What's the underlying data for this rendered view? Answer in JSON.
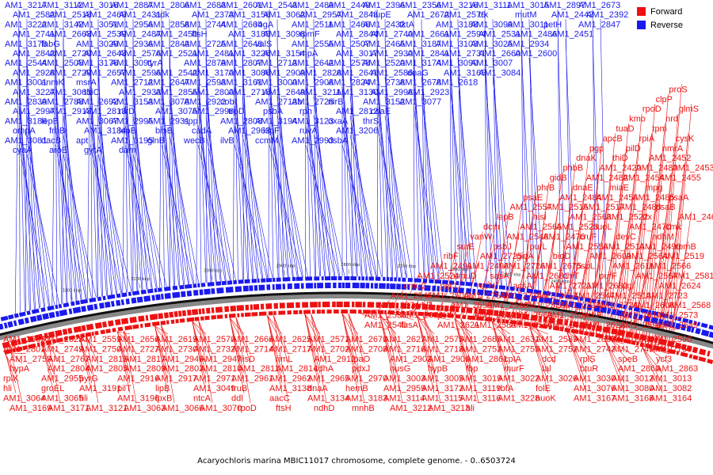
{
  "title": "Acaryochloris marina MBIC11017 chromosome, complete genome. - 0..6503724",
  "legend": {
    "forward": {
      "label": "Forward",
      "color": "#ee1111"
    },
    "reverse": {
      "label": "Reverse",
      "color": "#1a1aee"
    }
  },
  "ticks": [
    "2400 kbp",
    "2500 kbp",
    "2600 kbp",
    "2700 kbp",
    "2800 kbp",
    "2900 kbp",
    "3000 kbp",
    "3100 kbp",
    "3200 kbp"
  ],
  "reverse_labels": [
    "AM1_3217",
    "AM1_3112",
    "AM1_3016",
    "AM1_2887",
    "AM1_2806",
    "AM1_2683",
    "AM1_2601",
    "AM1_2543",
    "AM1_2489",
    "AM1_2449",
    "AM1_2396",
    "AM1_2356",
    "AM1_3216",
    "AM1_3111",
    "AM1_3015",
    "AM1_2897",
    "AM1_2673",
    "AM1_2582",
    "AM1_2518",
    "AM1_2469",
    "AM1_2431",
    "adk",
    "AM1_2373",
    "AM1_3156",
    "AM1_3062",
    "AM1_2957",
    "AM1_2848",
    "hupE",
    "AM1_2672",
    "AM1_2579",
    "trx",
    "mutM",
    "AM1_2442",
    "AM1_2392",
    "AM1_3222",
    "AM1_3142",
    "AM1_3051",
    "AM1_2956",
    "AM1_2858",
    "AM1_2744",
    "AM1_2664",
    "rbgA",
    "AM1_2511",
    "AM1_2466",
    "AM1_2432",
    "tktA",
    "AM1_3188",
    "AM1_3099",
    "AM1_3011",
    "petH",
    "AM1_2847",
    "AM1_2741",
    "AM1_2663",
    "AM1_2539",
    "AM1_2487",
    "AM1_2450",
    "ftsH",
    "AM1_3185",
    "AM1_3098",
    "rpmF",
    "AM1_2844",
    "AM1_2740",
    "AM1_2661",
    "AM1_2594",
    "AM1_2531",
    "AM1_2486",
    "AM1_2451",
    "AM1_3178",
    "fabG",
    "AM1_3029",
    "AM1_2936",
    "AM1_2843",
    "AM1_2725",
    "AM1_2648",
    "valS",
    "AM1_2555",
    "AM1_2507",
    "AM1_2465",
    "AM1_3187",
    "AM1_3103",
    "AM1_3025",
    "AM1_2934",
    "AM1_2842",
    "AM1_2720",
    "AM1_2643",
    "AM1_2576",
    "AM1_2521",
    "AM1_2481",
    "AM1_3226",
    "AM1_3154",
    "rnpA",
    "AM1_3017",
    "AM1_2930",
    "AM1_2841",
    "AM1_2731",
    "AM1_2660",
    "AM1_2600",
    "AM1_2544",
    "AM1_2505",
    "AM1_3176",
    "AM1_3091",
    "tyrA",
    "AM1_2879",
    "AM1_2807",
    "AM1_2713",
    "AM1_2642",
    "AM1_2578",
    "AM1_2520",
    "AM1_3174",
    "AM1_3090",
    "AM1_3007",
    "AM1_2928",
    "AM1_2729",
    "AM1_2657",
    "AM1_2596",
    "AM1_2542",
    "AM1_3170",
    "AM1_3086",
    "AM1_2909",
    "AM1_2828",
    "AM1_2641",
    "AM1_2586",
    "dnaG",
    "AM1_3165",
    "AM1_3084",
    "AM1_3001",
    "anmK",
    "msrA",
    "AM1_2712",
    "AM1_2647",
    "AM1_2593",
    "AM1_3161",
    "AM1_3000",
    "AM1_2908",
    "AM1_2824",
    "AM1_2738",
    "AM1_2678",
    "AM1_2618",
    "AM1_3227",
    "AM1_3061",
    "thiC",
    "AM1_2933",
    "AM1_2855",
    "AM1_2800",
    "AM1_2715",
    "AM1_2649",
    "AM1_3211",
    "AM1_3130",
    "AM1_2998",
    "AM1_2923",
    "AM1_2839",
    "AM1_2788",
    "AM1_2692",
    "AM1_3153",
    "AM1_3078",
    "AM1_2922",
    "cobI",
    "AM1_2713b",
    "AM1_2728",
    "nirB",
    "AM1_3152",
    "AM1_3077",
    "AM1_2997",
    "AM1_2913",
    "AM1_2813",
    "nirD",
    "AM1_3075",
    "AM1_2996",
    "trpD",
    "psbA",
    "rph",
    "AM1_2812",
    "coaE",
    "AM1_3186",
    "lepB",
    "AM1_3067",
    "AM1_2995",
    "AM1_2931",
    "spp",
    "AM1_2808",
    "AM1_3194",
    "AM1_3123",
    "oxaA",
    "thrS",
    "ompA",
    "frhB",
    "AM1_3184",
    "lepB",
    "bioB",
    "cadA",
    "AM1_2963",
    "ispF",
    "ruvA",
    "AM1_3206",
    "AM1_3081",
    "dacB",
    "apt",
    "AM1_3195",
    "glnB",
    "wecB",
    "ilvB",
    "ccmM",
    "AM1_2993",
    "dsbA",
    "cyaA",
    "aroE",
    "gyrA",
    "dam"
  ],
  "forward_labels": [
    "proS",
    "clpP",
    "rpoD",
    "glmS",
    "kmo",
    "nrd",
    "tuaD",
    "tpm",
    "apcB",
    "rpiA",
    "cysK",
    "pgp",
    "pilD",
    "nmrA",
    "dnaK",
    "thiD",
    "AM1_2452",
    "phbB",
    "AM1_2420",
    "AM1_2480",
    "AM1_2453",
    "gidB",
    "AM1_2482",
    "AM1_2454",
    "AM1_2455",
    "phrB",
    "dnaE",
    "miaE",
    "mpg",
    "psaE",
    "AM1_2484",
    "AM1_2456",
    "AM1_2485",
    "psaA",
    "AM1_2557",
    "AM1_2515",
    "AM1_2517",
    "AM1_2488",
    "psaB",
    "lepB",
    "hisI",
    "AM1_2563",
    "AM1_2522",
    "rtx",
    "AM1_2467",
    "dcm",
    "AM1_2565",
    "AM1_2523",
    "nuoL",
    "AM1_2470",
    "cmk",
    "vanW",
    "AM1_2548",
    "AM1_2476",
    "cruF",
    "devC",
    "ndhM",
    "surE",
    "psbJ",
    "purL",
    "AM1_2556",
    "AM1_2516",
    "AM1_2490",
    "rpmB",
    "ribF",
    "AM1_2725",
    "gidA",
    "bioD",
    "AM1_2609",
    "AM1_2564",
    "AM1_2519",
    "AM1_2491",
    "AM1_2498",
    "AM1_2726",
    "AM1_2675",
    "psbL",
    "AM1_2611",
    "AM1_2566",
    "AM1_2524",
    "umuD",
    "sasA",
    "AM1_2681",
    "chiT",
    "purF",
    "AM1_2567",
    "AM1_2581",
    "umuC",
    "petJ",
    "recN",
    "acsA",
    "AM1_2721",
    "AM1_2682",
    "pgl",
    "AM1_2624",
    "AM1_2545",
    "AM1_2506",
    "AM1_2754",
    "AM1_2736",
    "AM1_2617",
    "AM1_2547",
    "AM1_2513",
    "AM1_2723",
    "AM1_2674",
    "rubR",
    "AM1_2599",
    "AM1_2560",
    "AM1_2525",
    "AM1_2514",
    "AM1_2724",
    "AM1_2608",
    "AM1_2568",
    "AM1_2530",
    "AM1_2684",
    "petM",
    "AM1_2610",
    "AM1_2569",
    "AM1_2534",
    "ychF",
    "AM1_2616",
    "AM1_2573",
    "AM1_2540",
    "fusA",
    "AM1_2621",
    "AM1_2585",
    "AM1_2546",
    "AM1_2662",
    "AM1_2623",
    "AM1_2591",
    "AM1_2549",
    "AM1_2665",
    "AM1_2628",
    "AM1_2559",
    "AM1_2656",
    "AM1_2619",
    "AM1_2570",
    "AM1_2666",
    "AM1_2625",
    "AM1_2571",
    "AM1_2670",
    "AM1_2627",
    "AM1_2575",
    "AM1_2685",
    "AM1_2631",
    "AM1_2589",
    "AM1_2686",
    "AM1_2634",
    "AM1_2590",
    "AM1_2801",
    "AM1_2749",
    "AM1_2750",
    "AM1_2727",
    "AM1_2730",
    "AM1_2732",
    "AM1_2714",
    "AM1_2717",
    "AM1_2702",
    "AM1_2708",
    "AM1_2716",
    "AM1_2718",
    "AM1_2753",
    "AM1_2755",
    "AM1_2752",
    "AM1_2742",
    "AM1_2745",
    "AM1_2757",
    "AM1_2759",
    "AM1_2767",
    "AM1_2815",
    "AM1_2817",
    "AM1_2946",
    "AM1_2947",
    "hisD",
    "rimL",
    "AM1_2912",
    "ipaO",
    "AM1_2903",
    "AM1_2906",
    "AM1_2861",
    "cpIA",
    "dcd",
    "rplS",
    "speB",
    "ycf3",
    "hypA",
    "AM1_2804",
    "AM1_2805",
    "AM1_2809",
    "AM1_2803",
    "AM1_2810",
    "AM1_2811",
    "AM1_2814",
    "sdhA",
    "pdxJ",
    "nusG",
    "hypB",
    "fbp",
    "murF",
    "tal",
    "btuR",
    "AM1_2860",
    "AM1_2863",
    "rplK",
    "AM1_2955",
    "pyrG",
    "AM1_2916",
    "AM1_2917",
    "AM1_2971",
    "AM1_2961",
    "AM1_2962",
    "AM1_2965",
    "AM1_2970",
    "AM1_3003",
    "AM1_3005",
    "AM1_3019",
    "AM1_3022",
    "AM1_3026",
    "AM1_3030",
    "AM1_3012",
    "AM1_3013",
    "hli",
    "groEL",
    "AM1_3191",
    "pilT",
    "lipB",
    "AM1_3049",
    "truB",
    "AM1_3138",
    "dnaA",
    "hemB",
    "AM1_2959",
    "AM1_3172",
    "AM1_3119",
    "rbfA",
    "folE",
    "AM1_3076",
    "AM1_3080",
    "AM1_3082",
    "AM1_3064",
    "AM1_3065",
    "hli",
    "AM1_3196",
    "lpxB",
    "ntcA",
    "ddl",
    "aacC",
    "AM1_3134",
    "AM1_3183",
    "AM1_3114",
    "AM1_3115",
    "AM1_3116",
    "AM1_3228",
    "nuoK",
    "AM1_3167",
    "AM1_3168",
    "AM1_3164",
    "AM1_3169",
    "AM1_3171",
    "AM1_3121",
    "AM1_3063",
    "AM1_3066",
    "AM1_3070",
    "rpoD",
    "ftsH",
    "ndhD",
    "mnhB",
    "AM1_3212",
    "AM1_3213",
    "hli"
  ]
}
